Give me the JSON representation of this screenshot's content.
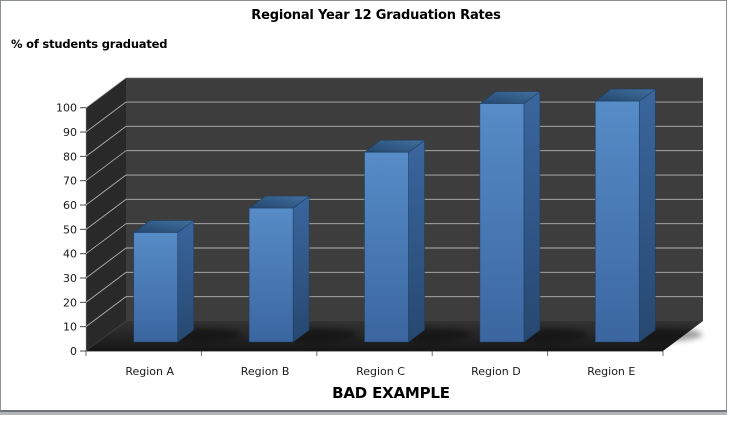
{
  "chart_data": {
    "type": "bar",
    "projection": "3d",
    "title": "Regional Year 12 Graduation Rates",
    "ylabel": "% of students graduated",
    "xlabel": "",
    "caption": "BAD EXAMPLE",
    "categories": [
      "Region A",
      "Region B",
      "Region C",
      "Region D",
      "Region E"
    ],
    "values": [
      45,
      55,
      78,
      98,
      99
    ],
    "ylim": [
      0,
      100
    ],
    "yticks": [
      0,
      10,
      20,
      30,
      40,
      50,
      60,
      70,
      80,
      90,
      100
    ],
    "grid": true,
    "legend": "none",
    "colors": {
      "back_wall": "#3d3d3d",
      "side_wall": "#292929",
      "floor_back": "#343434",
      "floor_front": "#161616",
      "gridline": "#c8c8c8",
      "axis_line": "#a3a3a3",
      "tick": "#4a4a4a",
      "text": "#1a1a1a",
      "bar_front_light": "#568cc7",
      "bar_front_dark": "#3b66a0",
      "bar_top_dark": "#24466d",
      "bar_top_light": "#41709f",
      "bar_side_light": "#3a669e",
      "bar_side_dark": "#264870",
      "bar_edge": "#1d3c60",
      "shadow": "#000000"
    }
  }
}
